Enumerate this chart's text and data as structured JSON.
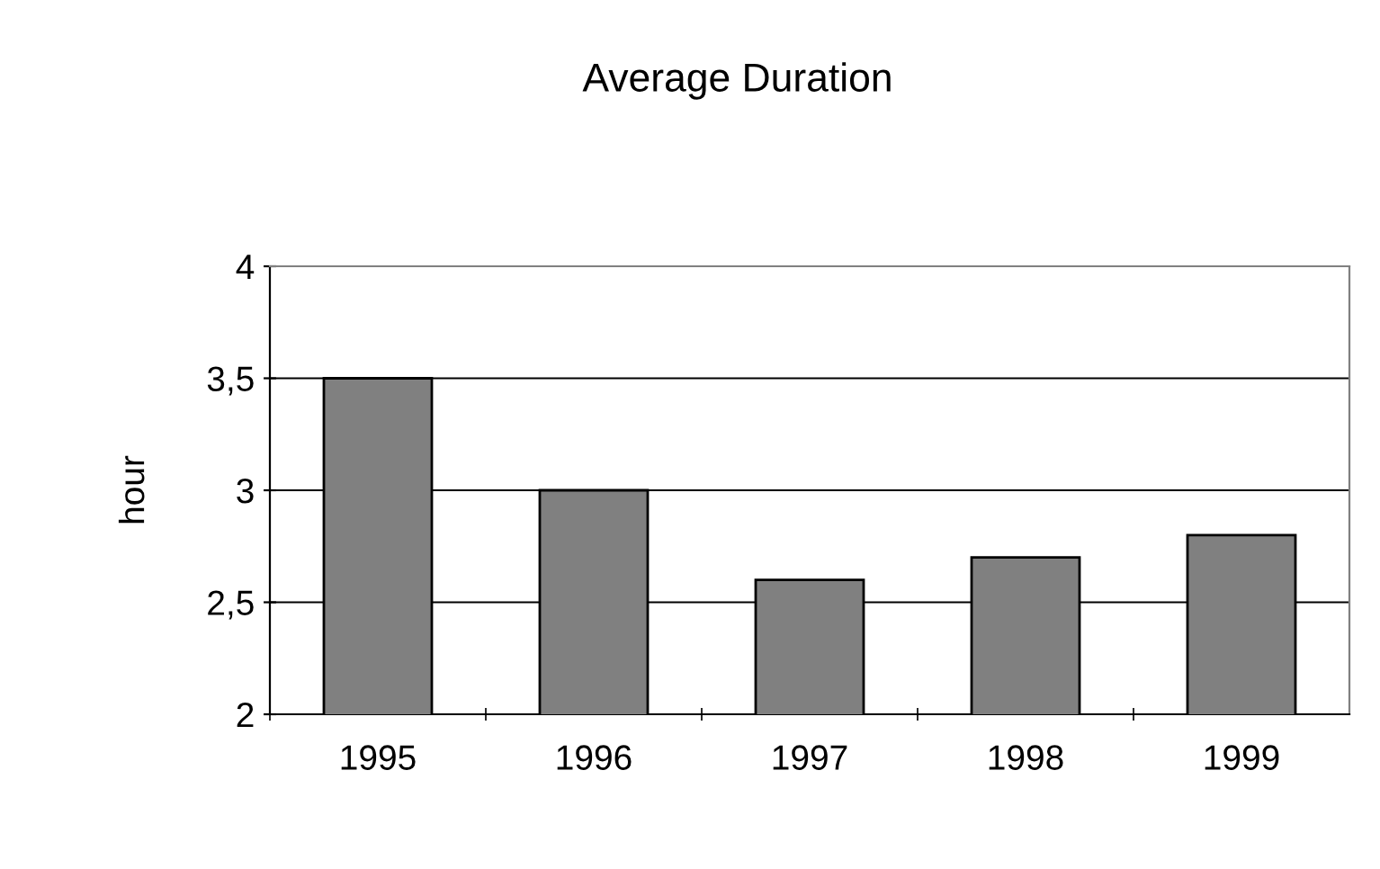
{
  "chart_data": {
    "type": "bar",
    "title": "Average Duration",
    "ylabel": "hour",
    "categories": [
      "1995",
      "1996",
      "1997",
      "1998",
      "1999"
    ],
    "values": [
      3.5,
      3.0,
      2.6,
      2.7,
      2.8
    ],
    "color": "#808080",
    "ylim": [
      2,
      4
    ],
    "yticks": [
      2,
      {
        "value": 2.5,
        "label": "2,5"
      },
      3,
      {
        "value": 3.5,
        "label": "3,5"
      },
      4
    ],
    "grid": "y",
    "legend": false
  }
}
